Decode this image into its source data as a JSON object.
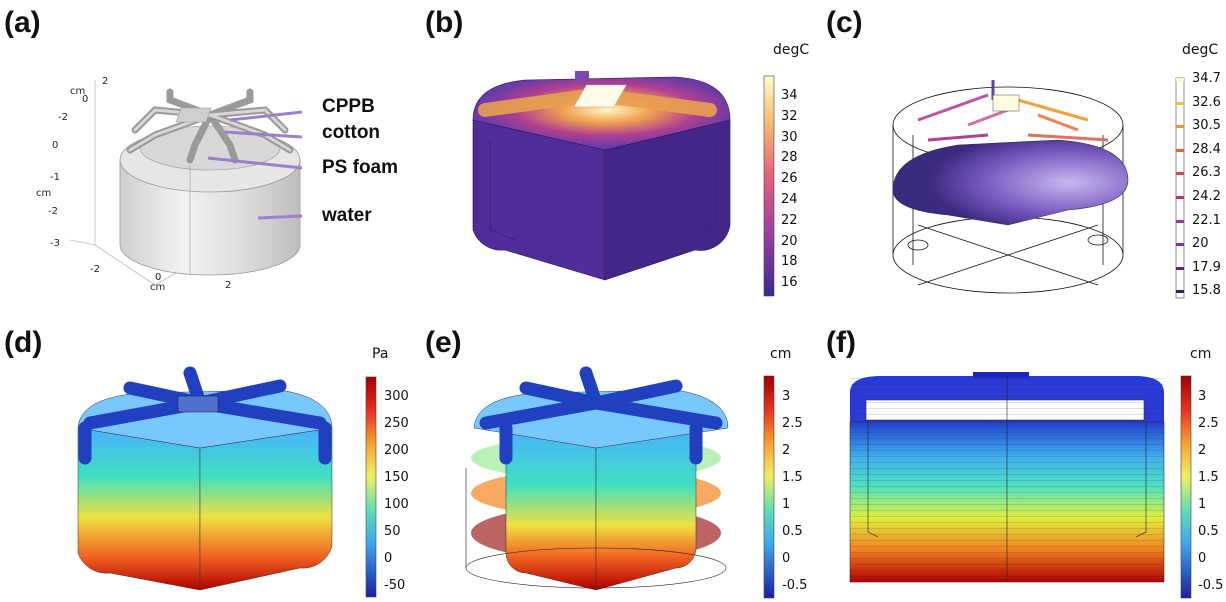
{
  "panels": {
    "a": {
      "label": "(a)",
      "axis_labels": {
        "top_cm": "cm",
        "top_0": "0",
        "top_2": "2",
        "left_neg2": "-2",
        "left_0": "0",
        "left_cm": "cm",
        "left_neg1": "-1",
        "left_neg2b": "-2",
        "left_neg3": "-3",
        "bot_neg2": "-2",
        "bot_0": "0",
        "bot_cm": "cm",
        "bot_2": "2"
      },
      "callouts": [
        "CPPB",
        "cotton",
        "PS foam",
        "water"
      ]
    },
    "b": {
      "label": "(b)",
      "unit": "degC",
      "ticks": [
        "34",
        "32",
        "30",
        "28",
        "26",
        "24",
        "22",
        "20",
        "18",
        "16"
      ]
    },
    "c": {
      "label": "(c)",
      "unit": "degC",
      "ticks": [
        "34.7",
        "32.6",
        "30.5",
        "28.4",
        "26.3",
        "24.2",
        "22.1",
        "20",
        "17.9",
        "15.8"
      ]
    },
    "d": {
      "label": "(d)",
      "unit": "Pa",
      "ticks": [
        "300",
        "250",
        "200",
        "150",
        "100",
        "50",
        "0",
        "-50"
      ]
    },
    "e": {
      "label": "(e)",
      "unit": "cm",
      "ticks": [
        "3",
        "2.5",
        "2",
        "1.5",
        "1",
        "0.5",
        "0",
        "-0.5"
      ]
    },
    "f": {
      "label": "(f)",
      "unit": "cm",
      "ticks": [
        "3",
        "2.5",
        "2",
        "1.5",
        "1",
        "0.5",
        "0",
        "-0.5"
      ]
    }
  },
  "colors": {
    "plasma_top": "#fdfdd0",
    "plasma_mid": "#e8607a",
    "plasma_bottom": "#40288f",
    "jet_top": "#a00000",
    "jet_mid": "#7ae0a0",
    "jet_bottom": "#1a20a0",
    "callout_line": "#9b7fd0"
  }
}
